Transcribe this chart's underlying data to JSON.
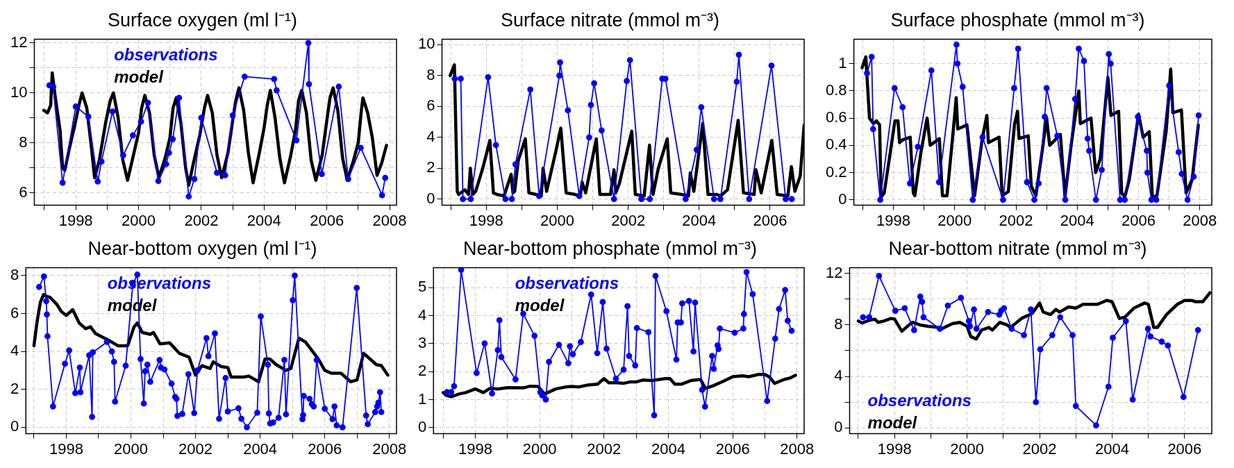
{
  "chart_data": [
    {
      "type": "line",
      "title": "Surface oxygen (ml l⁻¹)",
      "xlim": [
        1996.68,
        2008.22
      ],
      "xticks": [
        {
          "value": 1997,
          "label": null
        },
        1998,
        {
          "value": 1999,
          "label": null
        },
        2000,
        {
          "value": 2001,
          "label": null
        },
        2002,
        {
          "value": 2003,
          "label": null
        },
        2004,
        {
          "value": 2005,
          "label": null
        },
        2006,
        {
          "value": 2007,
          "label": null
        },
        2008
      ],
      "ylim": [
        5.5,
        12.15
      ],
      "yticks": [
        6,
        {
          "value": 7,
          "label": null
        },
        8,
        {
          "value": 9,
          "label": null
        },
        10,
        {
          "value": 11,
          "label": null
        },
        12
      ],
      "grid": true,
      "legend": "top left",
      "series": [
        {
          "name": "observations",
          "color": "#0000ff",
          "marker": "circle",
          "x": [
            1997.16,
            1997.28,
            1997.58,
            1998.0,
            1998.4,
            1998.7,
            1998.82,
            1999.17,
            1999.51,
            1999.82,
            2000.08,
            2000.3,
            2000.63,
            2000.88,
            2000.97,
            2001.09,
            2001.29,
            2001.6,
            2001.78,
            2002.0,
            2002.5,
            2002.76,
            2003.0,
            2003.38,
            2004.32,
            2004.4,
            2005.03,
            2005.41,
            2005.43,
            2005.84,
            2006.38,
            2006.68,
            2007.08,
            2007.76,
            2007.86
          ],
          "values": [
            10.3,
            10.25,
            6.4,
            9.45,
            9.05,
            6.45,
            7.25,
            9.25,
            7.5,
            8.3,
            8.85,
            9.6,
            6.47,
            7.15,
            7.6,
            8.15,
            9.8,
            5.85,
            6.55,
            9.0,
            6.8,
            6.7,
            9.1,
            10.65,
            10.55,
            10.1,
            8.1,
            12.0,
            10.35,
            6.75,
            10.25,
            6.55,
            7.8,
            5.9,
            6.6
          ]
        },
        {
          "name": "model",
          "color": "#000000",
          "marker": "none",
          "x": [
            1996.98,
            1997.1,
            1997.2,
            1997.25,
            1997.35,
            1997.5,
            1997.58,
            1997.65,
            1997.8,
            1997.95,
            1998.1,
            1998.2,
            1998.35,
            1998.5,
            1998.6,
            1998.75,
            1998.95,
            1999.1,
            1999.2,
            1999.35,
            1999.5,
            1999.65,
            1999.8,
            2000.0,
            2000.1,
            2000.2,
            2000.35,
            2000.5,
            2000.65,
            2000.85,
            2001.0,
            2001.1,
            2001.2,
            2001.35,
            2001.5,
            2001.6,
            2001.75,
            2001.95,
            2002.1,
            2002.2,
            2002.35,
            2002.5,
            2002.65,
            2002.85,
            2003.0,
            2003.1,
            2003.2,
            2003.35,
            2003.5,
            2003.65,
            2003.85,
            2004.0,
            2004.1,
            2004.2,
            2004.35,
            2004.5,
            2004.65,
            2004.85,
            2005.0,
            2005.1,
            2005.2,
            2005.35,
            2005.5,
            2005.65,
            2005.85,
            2006.0,
            2006.1,
            2006.2,
            2006.35,
            2006.5,
            2006.65,
            2006.85,
            2007.0,
            2007.1,
            2007.15,
            2007.3,
            2007.45,
            2007.6,
            2007.75,
            2007.9
          ],
          "values": [
            9.3,
            9.2,
            9.5,
            10.8,
            9.8,
            8.5,
            7.0,
            6.9,
            7.8,
            8.6,
            9.5,
            10.0,
            9.4,
            7.8,
            6.6,
            7.3,
            8.8,
            9.7,
            10.0,
            9.0,
            7.3,
            6.5,
            7.3,
            8.4,
            9.4,
            9.9,
            9.2,
            7.5,
            6.6,
            7.4,
            8.2,
            9.4,
            9.8,
            8.8,
            7.0,
            6.3,
            7.2,
            8.3,
            9.4,
            9.9,
            9.2,
            7.5,
            6.6,
            7.6,
            8.9,
            9.7,
            10.2,
            9.3,
            7.6,
            6.4,
            7.6,
            8.6,
            9.5,
            10.1,
            9.0,
            7.4,
            6.4,
            7.5,
            8.5,
            9.7,
            10.1,
            9.2,
            7.3,
            6.5,
            7.5,
            8.9,
            9.8,
            10.2,
            9.3,
            7.4,
            6.5,
            7.3,
            8.0,
            9.3,
            9.8,
            9.2,
            8.2,
            6.7,
            7.2,
            7.9
          ]
        }
      ]
    },
    {
      "type": "line",
      "title": "Surface nitrate (mmol m⁻³)",
      "xlim": [
        1996.75,
        2006.96
      ],
      "xticks": [
        {
          "value": 1997,
          "label": null
        },
        1998,
        {
          "value": 1999,
          "label": null
        },
        2000,
        {
          "value": 2001,
          "label": null
        },
        2002,
        {
          "value": 2003,
          "label": null
        },
        2004,
        {
          "value": 2005,
          "label": null
        },
        2006
      ],
      "ylim": [
        -0.4,
        10.36
      ],
      "yticks": [
        0,
        2,
        4,
        6,
        8,
        10
      ],
      "grid": true,
      "series": [
        {
          "color": "#0000ff",
          "marker": "circle",
          "x": [
            1997.11,
            1997.28,
            1997.34,
            1997.56,
            1998.05,
            1998.27,
            1998.54,
            1998.72,
            1998.82,
            1999.24,
            1999.49,
            2000.06,
            2000.08,
            2000.3,
            2000.62,
            2000.9,
            2000.95,
            2001.04,
            2001.25,
            2001.6,
            2001.96,
            2002.05,
            2002.37,
            2002.61,
            2002.96,
            2003.05,
            2003.62,
            2003.93,
            2004.06,
            2004.42,
            2004.6,
            2005.06,
            2005.12,
            2005.41,
            2006.04,
            2006.44,
            2006.61
          ],
          "values": [
            7.8,
            7.8,
            0,
            0,
            7.9,
            3.5,
            0,
            0,
            2.25,
            7.1,
            0.2,
            8.0,
            8.85,
            5.75,
            0.2,
            4.0,
            6.1,
            7.5,
            4.45,
            0,
            7.65,
            9.0,
            0,
            0,
            7.8,
            7.8,
            0,
            3.2,
            5.95,
            0,
            0,
            7.6,
            9.35,
            0,
            8.65,
            0,
            0
          ]
        },
        {
          "color": "#000000",
          "marker": "none",
          "x": [
            1996.98,
            1997.1,
            1997.18,
            1997.22,
            1997.4,
            1997.5,
            1997.55,
            1997.62,
            1997.7,
            1997.9,
            1998.1,
            1998.2,
            1998.3,
            1998.5,
            1998.7,
            1998.75,
            1998.8,
            1998.9,
            1999.1,
            1999.2,
            1999.4,
            1999.55,
            1999.6,
            1999.7,
            1999.95,
            2000.1,
            2000.25,
            2000.5,
            2000.65,
            2000.7,
            2000.8,
            2001.1,
            2001.2,
            2001.5,
            2001.6,
            2001.65,
            2001.75,
            2002.1,
            2002.2,
            2002.45,
            2002.6,
            2002.7,
            2002.85,
            2003.1,
            2003.2,
            2003.5,
            2003.7,
            2003.75,
            2003.85,
            2004.1,
            2004.25,
            2004.5,
            2004.6,
            2004.8,
            2005.1,
            2005.25,
            2005.55,
            2005.6,
            2005.75,
            2006.05,
            2006.2,
            2006.5,
            2006.6,
            2006.7,
            2006.85,
            2006.96
          ],
          "values": [
            8.0,
            8.7,
            0.5,
            0.3,
            0.6,
            0.3,
            2.0,
            0.3,
            0.5,
            2.0,
            3.8,
            0.4,
            0.3,
            0.2,
            1.6,
            0.4,
            0.5,
            2.5,
            3.9,
            0.4,
            0.3,
            0.2,
            2.0,
            0.5,
            3.0,
            4.6,
            0.4,
            0.3,
            0.2,
            1.1,
            0.4,
            3.9,
            0.3,
            0.3,
            1.9,
            0.4,
            1.0,
            4.4,
            0.3,
            0.2,
            3.5,
            0.3,
            2.0,
            3.9,
            0.4,
            0.3,
            0.2,
            1.7,
            0.5,
            4.9,
            0.3,
            0.3,
            0.2,
            0.6,
            5.1,
            0.4,
            0.3,
            1.9,
            0.4,
            3.8,
            0.3,
            0.2,
            2.1,
            0.5,
            1.5,
            4.8
          ]
        }
      ]
    },
    {
      "type": "line",
      "title": "Surface phosphate (mmol m⁻³)",
      "xlim": [
        1996.71,
        2008.39
      ],
      "xticks": [
        {
          "value": 1997,
          "label": null
        },
        1998,
        {
          "value": 1999,
          "label": null
        },
        2000,
        {
          "value": 2001,
          "label": null
        },
        2002,
        {
          "value": 2003,
          "label": null
        },
        2004,
        {
          "value": 2005,
          "label": null
        },
        2006,
        {
          "value": 2007,
          "label": null
        },
        2008
      ],
      "ylim": [
        -0.04,
        1.18
      ],
      "yticks": [
        0,
        0.2,
        0.4,
        0.6,
        0.8,
        1
      ],
      "grid": true,
      "series": [
        {
          "color": "#0000ff",
          "marker": "circle",
          "x": [
            1997.14,
            1997.29,
            1997.34,
            1997.57,
            1998.04,
            1998.3,
            1998.54,
            1998.8,
            1999.24,
            1999.49,
            2000.06,
            2000.09,
            2000.26,
            2000.59,
            2000.91,
            2001.58,
            2001.94,
            2002.07,
            2002.36,
            2002.6,
            2002.74,
            2002.94,
            2003.0,
            2003.35,
            2003.61,
            2003.93,
            2004.05,
            2004.22,
            2004.34,
            2004.39,
            2004.61,
            2004.8,
            2005.03,
            2005.09,
            2005.4,
            2005.55,
            2005.98,
            2006.27,
            2006.29,
            2006.42,
            2006.58,
            2007.0,
            2007.31,
            2007.41,
            2007.6,
            2007.8,
            2007.96
          ],
          "values": [
            0.93,
            1.05,
            0.52,
            0,
            0.82,
            0.68,
            0.12,
            0.39,
            0.95,
            0.13,
            1.14,
            1.0,
            0.83,
            0,
            0.46,
            0,
            0.82,
            1.11,
            0.13,
            0,
            0.12,
            0.61,
            0.82,
            0.47,
            0,
            0.74,
            1.11,
            1.02,
            0.45,
            0.36,
            0,
            0.22,
            1.07,
            1.0,
            0,
            0,
            0.61,
            0.36,
            0.2,
            0,
            0,
            0.84,
            0.35,
            0.19,
            0,
            0.17,
            0.62
          ]
        },
        {
          "color": "#000000",
          "marker": "none",
          "x": [
            1996.98,
            1997.1,
            1997.22,
            1997.35,
            1997.45,
            1997.55,
            1997.6,
            1997.7,
            1997.9,
            1998.05,
            1998.15,
            1998.2,
            1998.3,
            1998.55,
            1998.65,
            1998.7,
            1998.9,
            1999.1,
            1999.2,
            1999.5,
            1999.6,
            1999.75,
            1999.95,
            2000.05,
            2000.1,
            2000.4,
            2000.65,
            2000.9,
            2001.05,
            2001.1,
            2001.45,
            2001.55,
            2001.75,
            2001.95,
            2002.05,
            2002.1,
            2002.4,
            2002.5,
            2002.65,
            2002.85,
            2003.0,
            2003.1,
            2003.45,
            2003.6,
            2003.8,
            2004.05,
            2004.1,
            2004.45,
            2004.6,
            2004.75,
            2005.0,
            2005.1,
            2005.35,
            2005.45,
            2005.55,
            2005.7,
            2006.0,
            2006.15,
            2006.35,
            2006.45,
            2006.6,
            2006.9,
            2007.05,
            2007.12,
            2007.4,
            2007.55,
            2007.75,
            2007.95
          ],
          "values": [
            0.97,
            1.05,
            0.6,
            0.56,
            0.58,
            0.55,
            0.02,
            0.05,
            0.35,
            0.58,
            0.58,
            0.42,
            0.44,
            0.46,
            0.05,
            0.03,
            0.35,
            0.6,
            0.4,
            0.45,
            0.03,
            0.03,
            0.5,
            0.75,
            0.52,
            0.55,
            0.03,
            0.45,
            0.62,
            0.42,
            0.46,
            0.03,
            0.06,
            0.55,
            0.65,
            0.45,
            0.47,
            0.1,
            0.03,
            0.35,
            0.6,
            0.4,
            0.48,
            0.02,
            0.4,
            0.8,
            0.56,
            0.6,
            0.2,
            0.3,
            0.9,
            0.62,
            0.65,
            0.05,
            0.02,
            0.15,
            0.63,
            0.46,
            0.5,
            0.02,
            0.03,
            0.5,
            0.96,
            0.64,
            0.66,
            0.05,
            0.15,
            0.55
          ]
        }
      ]
    },
    {
      "type": "line",
      "title": "Near-bottom oxygen (ml l⁻¹)",
      "xlim": [
        1996.75,
        2008.22
      ],
      "xticks": [
        {
          "value": 1997,
          "label": null
        },
        1998,
        {
          "value": 1999,
          "label": null
        },
        2000,
        {
          "value": 2001,
          "label": null
        },
        2002,
        {
          "value": 2003,
          "label": null
        },
        2004,
        {
          "value": 2005,
          "label": null
        },
        2006,
        {
          "value": 2007,
          "label": null
        },
        2008
      ],
      "ylim": [
        -0.34,
        8.42
      ],
      "yticks": [
        0,
        2,
        4,
        6,
        8
      ],
      "grid": true,
      "legend": "top left",
      "series": [
        {
          "name": "observations",
          "color": "#0000ff",
          "marker": "circle",
          "x": [
            1997.16,
            1997.31,
            1997.38,
            1997.4,
            1997.42,
            1997.59,
            1997.96,
            1998.09,
            1998.28,
            1998.42,
            1998.44,
            1998.71,
            1998.8,
            1998.82,
            1999.26,
            1999.41,
            1999.48,
            1999.51,
            1999.84,
            2000.06,
            2000.2,
            2000.3,
            2000.4,
            2000.44,
            2000.51,
            2000.6,
            2000.89,
            2000.93,
            2001.04,
            2001.26,
            2001.37,
            2001.41,
            2001.44,
            2001.59,
            2001.78,
            2001.96,
            2002.06,
            2002.34,
            2002.4,
            2002.6,
            2002.73,
            2002.93,
            2003.0,
            2003.33,
            2003.42,
            2003.59,
            2003.91,
            2004.02,
            2004.24,
            2004.27,
            2004.31,
            2004.4,
            2004.57,
            2004.75,
            2004.8,
            2005.01,
            2005.07,
            2005.31,
            2005.33,
            2005.35,
            2005.53,
            2005.6,
            2005.66,
            2005.75,
            2006.0,
            2006.24,
            2006.3,
            2006.37,
            2006.55,
            2006.99,
            2007.28,
            2007.33,
            2007.56,
            2007.62,
            2007.66,
            2007.71,
            2007.75
          ],
          "values": [
            7.4,
            7.95,
            6.65,
            5.95,
            4.8,
            1.1,
            3.35,
            4.05,
            1.8,
            3.15,
            1.85,
            3.8,
            0.55,
            3.95,
            4.5,
            4.0,
            3.45,
            1.35,
            3.25,
            7.55,
            8.05,
            3.6,
            1.25,
            2.95,
            3.3,
            2.4,
            3.55,
            3.15,
            3.05,
            2.3,
            1.6,
            1.5,
            0.6,
            0.7,
            2.8,
            0.75,
            3.0,
            4.7,
            3.75,
            4.95,
            0.45,
            2.6,
            0.83,
            1.0,
            0.45,
            0,
            0.77,
            5.85,
            3.3,
            0.73,
            0.2,
            0.25,
            0.5,
            3.55,
            0.68,
            6.7,
            8.0,
            0.43,
            0.65,
            1.65,
            1.5,
            1.22,
            1.1,
            3.55,
            0.98,
            0.43,
            1.1,
            0.1,
            0,
            7.35,
            0.62,
            0.16,
            0.8,
            1.1,
            1.3,
            1.85,
            0.8
          ]
        },
        {
          "name": "model",
          "color": "#000000",
          "marker": "none",
          "x": [
            1997.0,
            1997.1,
            1997.2,
            1997.3,
            1997.4,
            1997.5,
            1997.7,
            1997.85,
            1998.0,
            1998.2,
            1998.4,
            1998.6,
            1998.75,
            1998.9,
            1999.3,
            1999.6,
            1999.9,
            2000.1,
            2000.2,
            2000.35,
            2000.6,
            2000.7,
            2000.9,
            2001.2,
            2001.5,
            2001.8,
            2002.0,
            2002.2,
            2002.45,
            2002.55,
            2002.8,
            2003.0,
            2003.1,
            2003.5,
            2003.65,
            2003.95,
            2004.15,
            2004.3,
            2004.5,
            2004.8,
            2004.95,
            2005.2,
            2005.4,
            2005.8,
            2006.0,
            2006.2,
            2006.5,
            2006.8,
            2007.0,
            2007.2,
            2007.4,
            2007.6,
            2007.75,
            2007.95
          ],
          "values": [
            4.3,
            5.6,
            6.6,
            7.0,
            6.9,
            6.85,
            6.5,
            6.1,
            5.9,
            6.2,
            5.5,
            5.2,
            5.3,
            4.95,
            4.6,
            4.3,
            4.3,
            5.3,
            5.5,
            5.0,
            4.9,
            5.0,
            4.4,
            4.45,
            3.9,
            3.7,
            2.75,
            3.25,
            3.1,
            3.45,
            3.2,
            3.15,
            2.65,
            2.65,
            2.7,
            2.4,
            3.6,
            3.6,
            3.3,
            3.0,
            3.1,
            4.7,
            4.5,
            3.6,
            3.0,
            2.85,
            2.85,
            2.4,
            2.5,
            3.9,
            3.6,
            3.3,
            3.25,
            2.75
          ]
        }
      ]
    },
    {
      "type": "line",
      "title": "Near-bottom phosphate (mmol m⁻³)",
      "xlim": [
        1996.7,
        2008.22
      ],
      "xticks": [
        {
          "value": 1997,
          "label": null
        },
        1998,
        {
          "value": 1999,
          "label": null
        },
        2000,
        {
          "value": 2001,
          "label": null
        },
        2002,
        {
          "value": 2003,
          "label": null
        },
        2004,
        {
          "value": 2005,
          "label": null
        },
        2006,
        {
          "value": 2007,
          "label": null
        },
        2008
      ],
      "ylim": [
        -0.22,
        5.72
      ],
      "yticks": [
        0,
        1,
        2,
        3,
        4,
        5
      ],
      "grid": true,
      "legend": "top left",
      "series": [
        {
          "name": "observations",
          "color": "#0000ff",
          "marker": "circle",
          "x": [
            1997.12,
            1997.25,
            1997.34,
            1997.56,
            1998.04,
            1998.29,
            1998.52,
            1998.7,
            1998.75,
            1998.81,
            1999.25,
            1999.49,
            1999.84,
            2000.02,
            2000.08,
            2000.19,
            2000.29,
            2000.6,
            2000.89,
            2000.94,
            2001.03,
            2001.28,
            2001.6,
            2001.79,
            2001.96,
            2002.08,
            2002.37,
            2002.61,
            2002.73,
            2002.78,
            2002.97,
            2003.02,
            2003.38,
            2003.56,
            2003.6,
            2003.94,
            2004.25,
            2004.29,
            2004.39,
            2004.43,
            2004.64,
            2004.78,
            2004.83,
            2005.05,
            2005.14,
            2005.36,
            2005.41,
            2005.53,
            2005.56,
            2005.6,
            2006.06,
            2006.33,
            2006.35,
            2006.43,
            2006.62,
            2007.07,
            2007.32,
            2007.44,
            2007.63,
            2007.71,
            2007.83
          ],
          "values": [
            1.27,
            1.27,
            1.48,
            5.64,
            1.95,
            3.01,
            1.22,
            2.77,
            3.84,
            2.52,
            1.72,
            4.07,
            3.28,
            1.27,
            1.15,
            1.0,
            2.35,
            2.96,
            2.3,
            2.91,
            2.62,
            3.06,
            4.76,
            2.66,
            4.49,
            2.82,
            1.75,
            2.07,
            4.34,
            2.56,
            2.22,
            3.56,
            3.41,
            0.44,
            5.42,
            4.16,
            2.43,
            3.76,
            3.76,
            4.44,
            4.53,
            2.72,
            4.47,
            1.35,
            0.75,
            2.56,
            2.1,
            2.94,
            2.81,
            3.54,
            3.39,
            3.54,
            4.06,
            5.56,
            4.77,
            0.95,
            3.18,
            4.24,
            4.92,
            3.82,
            3.46
          ]
        },
        {
          "name": "model",
          "color": "#000000",
          "marker": "none",
          "x": [
            1997.0,
            1997.1,
            1997.25,
            1997.5,
            1997.7,
            1998.0,
            1998.25,
            1998.45,
            1998.7,
            1999.0,
            1999.5,
            1999.7,
            1999.95,
            2000.15,
            2000.25,
            2000.5,
            2000.8,
            2001.0,
            2001.2,
            2001.5,
            2001.8,
            2002.0,
            2002.15,
            2002.4,
            2002.6,
            2002.8,
            2003.0,
            2003.2,
            2003.5,
            2003.9,
            2004.05,
            2004.2,
            2004.4,
            2004.7,
            2005.0,
            2005.15,
            2005.4,
            2005.7,
            2006.0,
            2006.3,
            2006.5,
            2006.8,
            2007.0,
            2007.15,
            2007.3,
            2007.6,
            2007.8,
            2007.95
          ],
          "values": [
            1.25,
            1.15,
            1.1,
            1.2,
            1.25,
            1.38,
            1.25,
            1.4,
            1.38,
            1.43,
            1.42,
            1.48,
            1.47,
            1.2,
            1.25,
            1.38,
            1.45,
            1.47,
            1.45,
            1.52,
            1.55,
            1.75,
            1.6,
            1.6,
            1.58,
            1.63,
            1.63,
            1.7,
            1.68,
            1.75,
            1.75,
            1.55,
            1.55,
            1.68,
            1.72,
            1.4,
            1.5,
            1.65,
            1.82,
            1.85,
            1.82,
            1.9,
            1.9,
            1.8,
            1.58,
            1.72,
            1.78,
            1.87
          ]
        }
      ]
    },
    {
      "type": "line",
      "title": "Near-bottom nitrate (mmol m⁻³)",
      "xlim": [
        1996.76,
        2006.75
      ],
      "xticks": [
        {
          "value": 1997,
          "label": null
        },
        1998,
        {
          "value": 1999,
          "label": null
        },
        2000,
        {
          "value": 2001,
          "label": null
        },
        2002,
        {
          "value": 2003,
          "label": null
        },
        2004,
        {
          "value": 2005,
          "label": null
        },
        2006
      ],
      "ylim": [
        -0.45,
        12.45
      ],
      "yticks": [
        0,
        {
          "value": 2,
          "label": null
        },
        4,
        {
          "value": 6,
          "label": null
        },
        8,
        {
          "value": 10,
          "label": null
        },
        12
      ],
      "grid": true,
      "legend": "bottom left",
      "series": [
        {
          "name": "observations",
          "color": "#0000ff",
          "marker": "circle",
          "x": [
            1997.13,
            1997.3,
            1997.57,
            1998.02,
            1998.28,
            1998.54,
            1998.71,
            1998.76,
            1998.8,
            1999.25,
            1999.47,
            1999.83,
            2000.05,
            2000.08,
            2000.19,
            2000.26,
            2000.58,
            2000.89,
            2000.94,
            2001.02,
            2001.23,
            2001.57,
            2001.76,
            2001.9,
            2002.02,
            2002.35,
            2002.57,
            2002.91,
            2003.0,
            2003.56,
            2003.9,
            2004.02,
            2004.38,
            2004.57,
            2004.99,
            2005.06,
            2005.37,
            2005.54,
            2005.97,
            2006.37
          ],
          "values": [
            8.6,
            8.6,
            11.8,
            9.1,
            9.3,
            7.6,
            10.2,
            9.8,
            8.6,
            7.7,
            9.5,
            10.1,
            8.3,
            7.9,
            9.2,
            7.7,
            9.0,
            8.8,
            9.1,
            9.3,
            7.7,
            7.2,
            9.2,
            2.0,
            6.1,
            7.2,
            8.6,
            7.2,
            1.7,
            0.2,
            3.2,
            7.0,
            8.3,
            2.2,
            7.7,
            7.1,
            6.7,
            6.4,
            2.4,
            7.6
          ]
        },
        {
          "name": "model",
          "color": "#000000",
          "marker": "none",
          "x": [
            1997.0,
            1997.1,
            1997.3,
            1997.45,
            1997.55,
            1997.7,
            1997.9,
            1998.0,
            1998.2,
            1998.4,
            1998.5,
            1998.7,
            1998.9,
            1999.2,
            1999.3,
            1999.6,
            1999.8,
            2000.0,
            2000.1,
            2000.25,
            2000.4,
            2000.6,
            2000.7,
            2000.9,
            2001.1,
            2001.2,
            2001.5,
            2001.8,
            2002.0,
            2002.1,
            2002.3,
            2002.45,
            2002.55,
            2002.8,
            2003.0,
            2003.2,
            2003.6,
            2003.85,
            2004.0,
            2004.2,
            2004.35,
            2004.6,
            2004.9,
            2005.0,
            2005.15,
            2005.25,
            2005.5,
            2005.8,
            2006.0,
            2006.2,
            2006.3,
            2006.5,
            2006.7
          ],
          "values": [
            8.3,
            8.15,
            8.35,
            8.45,
            8.2,
            8.3,
            8.5,
            8.45,
            7.5,
            8.0,
            8.2,
            8.0,
            7.9,
            7.8,
            7.7,
            8.1,
            8.2,
            7.9,
            7.1,
            6.9,
            7.6,
            7.8,
            7.6,
            8.2,
            8.0,
            7.8,
            8.5,
            8.9,
            9.7,
            9.0,
            8.8,
            9.2,
            9.0,
            9.4,
            9.3,
            9.6,
            9.6,
            9.9,
            9.8,
            8.5,
            8.6,
            9.3,
            9.7,
            9.6,
            7.8,
            7.8,
            8.8,
            9.6,
            9.9,
            9.9,
            9.8,
            9.8,
            10.5
          ]
        }
      ]
    }
  ]
}
